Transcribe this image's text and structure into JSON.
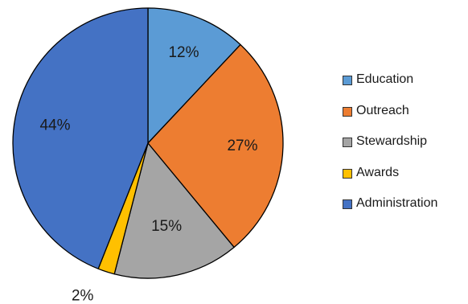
{
  "chart_data": {
    "type": "pie",
    "title": "",
    "categories": [
      "Education",
      "Outreach",
      "Stewardship",
      "Awards",
      "Administration"
    ],
    "values": [
      12,
      27,
      15,
      2,
      44
    ],
    "labels": [
      "12%",
      "27%",
      "15%",
      "2%",
      "44%"
    ],
    "colors": [
      "#5b9bd5",
      "#ed7d31",
      "#a5a5a5",
      "#ffc000",
      "#4472c4"
    ],
    "start": "12 o'clock, clockwise",
    "legend": "right"
  }
}
